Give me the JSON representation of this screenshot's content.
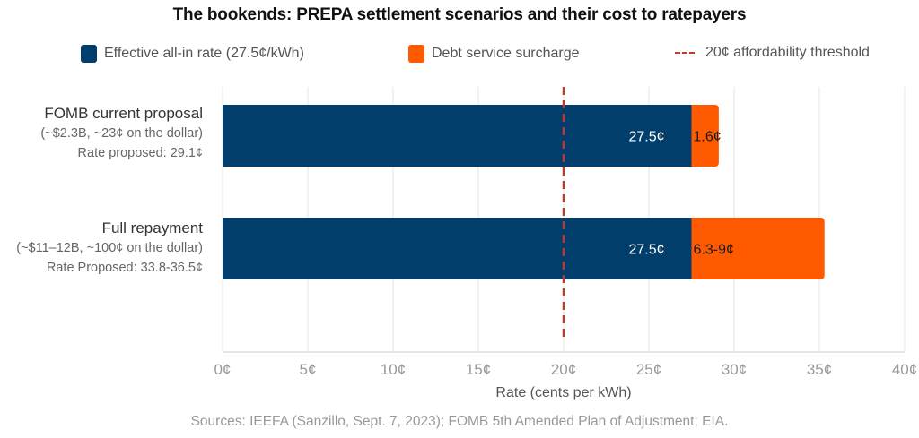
{
  "chart_data": {
    "type": "bar",
    "orientation": "horizontal",
    "stacked": true,
    "title": "The bookends: PREPA settlement scenarios and their cost to ratepayers",
    "xlabel": "Rate (cents per kWh)",
    "ylabel": "",
    "xlim": [
      0,
      40
    ],
    "xticks": [
      0,
      5,
      10,
      15,
      20,
      25,
      30,
      35,
      40
    ],
    "xtick_labels": [
      "0¢",
      "5¢",
      "10¢",
      "15¢",
      "20¢",
      "25¢",
      "30¢",
      "35¢",
      "40¢"
    ],
    "grid": "vertical",
    "legend_position": "top",
    "categories": [
      {
        "name": "FOMB current proposal",
        "detail": "(~$2.3B, ~23¢ on the dollar)",
        "rate_note": "Rate proposed: 29.1¢"
      },
      {
        "name": "Full repayment",
        "detail": "(~$11–12B, ~100¢ on the dollar)",
        "rate_note": "Rate Proposed: 33.8-36.5¢"
      }
    ],
    "series": [
      {
        "name": "Effective all-in rate (27.5¢/kWh)",
        "color": "#023e6c",
        "values": [
          27.5,
          27.5
        ],
        "labels": [
          "27.5¢",
          "27.5¢"
        ]
      },
      {
        "name": "Debt service surcharge",
        "color": "#ff5a00",
        "values": [
          1.6,
          7.8
        ],
        "labels": [
          "1.6¢",
          "6.3-9¢"
        ]
      }
    ],
    "reference_line": {
      "name": "20¢ affordability threshold",
      "value": 20,
      "color": "#c0392b",
      "style": "dashed"
    },
    "source": "Sources: IEEFA (Sanzillo, Sept. 7, 2023); FOMB 5th Amended Plan of Adjustment; EIA."
  }
}
